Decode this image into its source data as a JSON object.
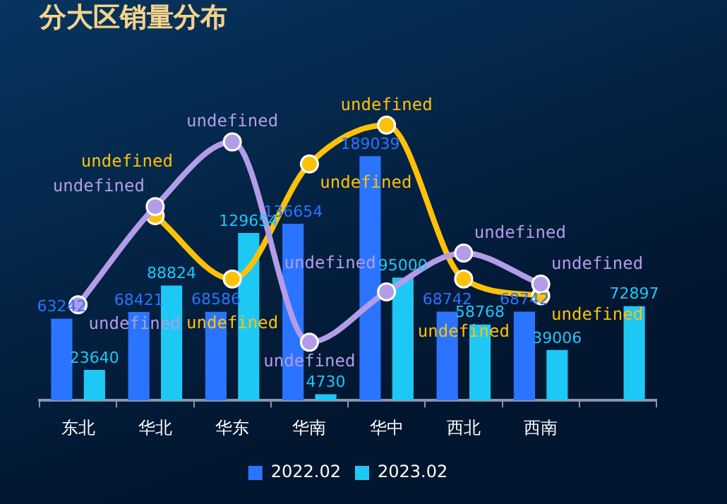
{
  "chart_data": {
    "type": "bar",
    "title": "分大区销量分布",
    "categories": [
      "东北",
      "华北",
      "华东",
      "华南",
      "华中",
      "西北",
      "西南",
      null
    ],
    "series": [
      {
        "name": "2022.02",
        "color": "#2b74ff",
        "values": [
          63242,
          68421,
          68586,
          136654,
          189039,
          68742,
          68742,
          null
        ]
      },
      {
        "name": "2023.02",
        "color": "#1ec8f5",
        "values": [
          23640,
          88824,
          129654,
          4730,
          95000,
          58768,
          39006,
          72897
        ]
      },
      {
        "type": "line",
        "color": "#b39ce8",
        "values": [
          74000,
          150000,
          200000,
          45000,
          84000,
          114000,
          90000,
          null
        ],
        "value_labels": [
          "undefined",
          "undefined",
          "undefined",
          "undefined",
          "undefined",
          "undefined",
          "undefined",
          null
        ]
      },
      {
        "type": "line",
        "color": "#ffc107",
        "values": [
          null,
          143000,
          94000,
          183000,
          213000,
          94000,
          81000,
          null
        ],
        "value_labels": [
          null,
          "undefined",
          "undefined",
          "undefined",
          "undefined",
          "undefined",
          "undefined",
          null
        ]
      }
    ],
    "data_labels": true,
    "legend": "bottom",
    "marker": "circle",
    "grid": false
  }
}
